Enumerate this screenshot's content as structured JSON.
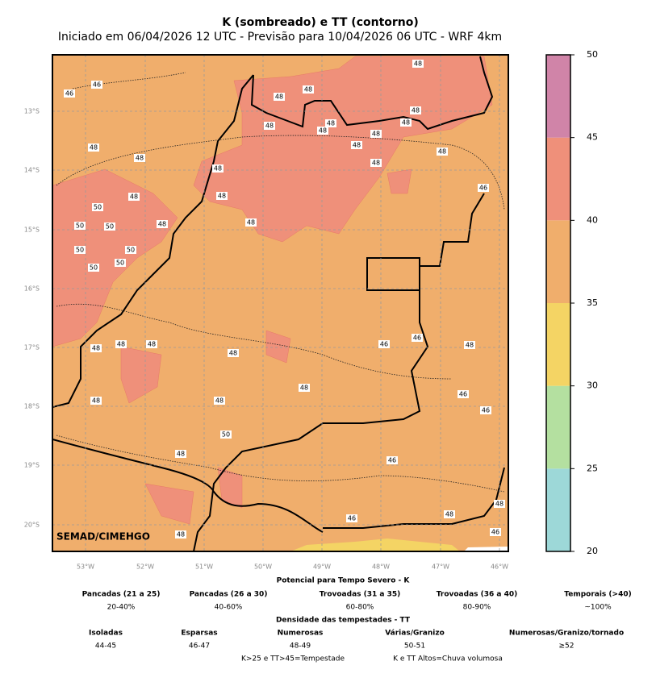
{
  "header": {
    "title": "K (sombreado) e TT (contorno)",
    "subtitle": "Iniciado em 06/04/2026 12 UTC - Previsão para 10/04/2026 06 UTC - WRF 4km"
  },
  "map": {
    "credit": "SEMAD/CIMEHGO",
    "lat_labels": [
      "13°S",
      "14°S",
      "15°S",
      "16°S",
      "17°S",
      "18°S",
      "19°S",
      "20°S"
    ],
    "lon_labels": [
      "53°W",
      "52°W",
      "51°W",
      "50°W",
      "49°W",
      "48°W",
      "47°W",
      "46°W"
    ],
    "contour_labels": [
      48,
      46,
      46,
      48,
      48,
      48,
      48,
      48,
      48,
      48,
      48,
      48,
      48,
      48,
      48,
      48,
      48,
      46,
      48,
      48,
      50,
      50,
      50,
      48,
      48,
      50,
      50,
      50,
      50,
      48,
      48,
      48,
      48,
      46,
      46,
      48,
      48,
      46,
      48,
      48,
      46,
      50,
      48,
      46,
      48,
      48,
      46,
      46,
      48
    ]
  },
  "colorbar": {
    "range": [
      20,
      50
    ],
    "ticks": [
      20,
      25,
      30,
      35,
      40,
      45,
      50
    ],
    "colors": [
      "#9dd8d8",
      "#b4e0a0",
      "#f4d464",
      "#f0ae6c",
      "#ef907a",
      "#d084a8"
    ]
  },
  "legend": {
    "k_title": "Potencial para Tempo Severo - K",
    "k_items": [
      {
        "name": "Pancadas (21 a 25)",
        "range": "20-40%"
      },
      {
        "name": "Pancadas (26 a 30)",
        "range": "40-60%"
      },
      {
        "name": "Trovoadas (31 a 35)",
        "range": "60-80%"
      },
      {
        "name": "Trovoadas (36 a 40)",
        "range": "80-90%"
      },
      {
        "name": "Temporais (>40)",
        "range": "~100%"
      }
    ],
    "tt_title": "Densidade das tempestades - TT",
    "tt_items": [
      {
        "name": "Isoladas",
        "range": "44-45"
      },
      {
        "name": "Esparsas",
        "range": "46-47"
      },
      {
        "name": "Numerosas",
        "range": "48-49"
      },
      {
        "name": "Várias/Granizo",
        "range": "50-51"
      },
      {
        "name": "Numerosas/Granizo/tornado",
        "range": "≥52"
      }
    ],
    "notes": [
      "K>25 e TT>45=Tempestade",
      "K e TT Altos=Chuva volumosa"
    ]
  }
}
